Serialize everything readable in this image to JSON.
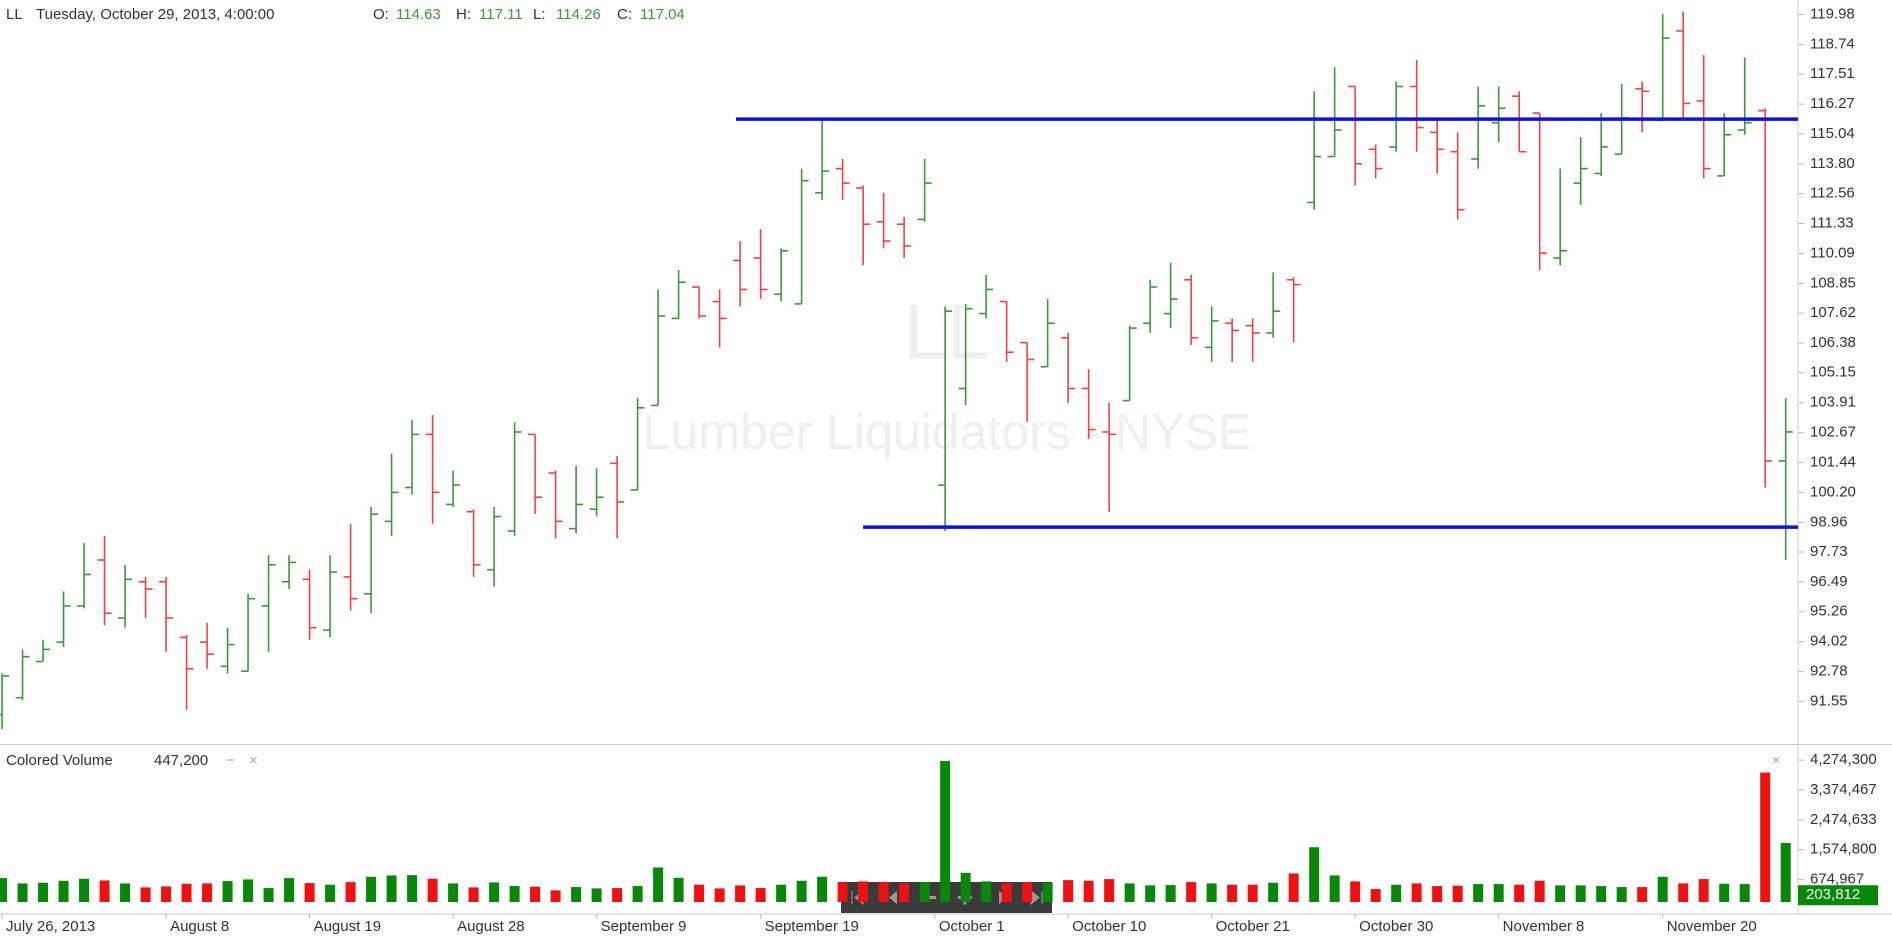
{
  "chart_data": [
    {
      "type": "ohlc",
      "symbol": "LL",
      "datetime": "Tuesday, October 29, 2013, 4:00:00",
      "readout": [
        {
          "label": "O:",
          "value": 114.63
        },
        {
          "label": "H:",
          "value": 117.11
        },
        {
          "label": "L:",
          "value": 114.26
        },
        {
          "label": "C:",
          "value": 117.04
        }
      ],
      "watermark": [
        "LL",
        "Lumber Liquidators - NYSE"
      ],
      "up_color": "#3a9a3a",
      "down_color": "#ee4343",
      "level_color": "#1010e0",
      "xlim": [
        -0.1,
        87.6
      ],
      "ylim": [
        89.95,
        120.58
      ],
      "yticks": [
        119.98,
        118.74,
        117.51,
        116.27,
        115.04,
        {
          "value": 113.8,
          "label": "113.80"
        },
        112.56,
        111.33,
        110.09,
        108.85,
        107.62,
        106.38,
        105.15,
        103.91,
        102.67,
        101.44,
        {
          "value": 100.2,
          "label": "100.20"
        },
        98.96,
        97.73,
        96.49,
        95.26,
        94.02,
        92.78,
        91.55
      ],
      "xticks": [
        {
          "value": 0,
          "label": "July 26, 2013"
        },
        {
          "value": 8,
          "label": "August 8"
        },
        {
          "value": 15,
          "label": "August 19"
        },
        {
          "value": 22,
          "label": "August 28"
        },
        {
          "value": 29,
          "label": "September 9"
        },
        {
          "value": 37,
          "label": "September 19"
        },
        {
          "value": 45.5,
          "label": "October 1"
        },
        {
          "value": 52,
          "label": "October 10"
        },
        {
          "value": 59,
          "label": "October 21"
        },
        {
          "value": 66,
          "label": "October 30"
        },
        {
          "value": 73,
          "label": "November 8"
        },
        {
          "value": 81,
          "label": "November 20"
        }
      ],
      "levels": [
        {
          "value": 115.65,
          "start": 35.8
        },
        {
          "value": 98.76,
          "start": 42
        }
      ],
      "open": [
        91.0,
        91.7,
        93.2,
        94.0,
        95.5,
        97.4,
        95.0,
        96.5,
        96.5,
        94.2,
        94.0,
        93.0,
        92.8,
        95.5,
        96.5,
        96.6,
        94.5,
        96.7,
        96.0,
        99.0,
        100.4,
        102.6,
        99.7,
        99.4,
        97.0,
        98.6,
        102.6,
        101.0,
        98.7,
        99.5,
        101.4,
        100.3,
        103.8,
        107.4,
        108.7,
        108.1,
        109.8,
        109.9,
        108.4,
        108.0,
        112.6,
        113.6,
        112.8,
        111.4,
        111.3,
        111.5,
        100.5,
        104.5,
        107.6,
        108.1,
        106.4,
        105.4,
        106.6,
        104.5,
        102.7,
        104.0,
        107.2,
        107.6,
        109.0,
        106.2,
        107.2,
        107.1,
        106.8,
        109.0,
        112.2,
        114.1,
        117.0,
        114.4,
        114.5,
        117.0,
        115.1,
        114.3,
        114.0,
        115.5,
        116.6,
        115.9,
        109.9,
        113.0,
        113.4,
        114.2,
        116.9,
        115.6,
        119.3,
        116.4,
        113.3,
        115.2,
        116.0,
        101.5
      ],
      "high": [
        92.7,
        93.7,
        94.1,
        96.1,
        98.1,
        98.4,
        97.2,
        96.7,
        96.7,
        94.3,
        94.8,
        94.6,
        96.0,
        97.6,
        97.6,
        97.0,
        97.6,
        98.9,
        99.6,
        101.8,
        103.2,
        103.4,
        101.1,
        99.5,
        99.6,
        103.1,
        102.6,
        101.1,
        101.3,
        101.2,
        101.7,
        104.1,
        108.6,
        109.4,
        108.7,
        108.6,
        110.6,
        111.1,
        110.3,
        113.6,
        115.7,
        114.0,
        112.9,
        112.6,
        111.6,
        114.0,
        107.9,
        108.0,
        109.2,
        108.1,
        106.4,
        108.2,
        106.8,
        105.3,
        103.9,
        107.1,
        109.0,
        109.7,
        109.2,
        107.9,
        107.4,
        107.4,
        109.3,
        109.1,
        116.8,
        117.8,
        117.0,
        114.6,
        117.2,
        118.1,
        115.6,
        115.1,
        117.0,
        117.0,
        116.8,
        115.9,
        113.6,
        114.9,
        115.9,
        117.1,
        117.2,
        120.0,
        120.1,
        118.3,
        115.9,
        118.2,
        116.1,
        104.1
      ],
      "low": [
        90.4,
        91.6,
        93.2,
        93.8,
        95.4,
        94.7,
        94.6,
        95.0,
        93.6,
        91.2,
        92.9,
        92.7,
        92.8,
        93.6,
        96.2,
        94.1,
        94.2,
        95.3,
        95.2,
        98.4,
        100.1,
        98.9,
        99.6,
        96.7,
        96.3,
        98.4,
        99.3,
        98.3,
        98.5,
        99.2,
        98.3,
        100.3,
        103.8,
        107.4,
        107.4,
        106.2,
        107.9,
        108.2,
        108.1,
        108.0,
        112.3,
        112.3,
        109.6,
        110.3,
        109.9,
        111.4,
        98.6,
        103.8,
        107.4,
        105.6,
        103.1,
        105.4,
        103.9,
        102.4,
        99.4,
        104.0,
        106.8,
        107.0,
        106.3,
        105.6,
        105.6,
        105.6,
        106.6,
        106.4,
        111.9,
        114.1,
        112.9,
        113.2,
        114.3,
        114.3,
        113.4,
        111.5,
        113.6,
        114.7,
        114.3,
        109.4,
        109.6,
        112.1,
        113.3,
        114.2,
        115.1,
        115.6,
        115.7,
        113.2,
        113.3,
        115.0,
        100.4,
        97.4
      ],
      "close": [
        92.6,
        93.4,
        93.7,
        95.5,
        96.8,
        95.2,
        96.6,
        96.2,
        95.0,
        92.9,
        93.5,
        93.9,
        95.8,
        97.2,
        97.3,
        94.6,
        96.9,
        95.8,
        99.3,
        100.2,
        102.6,
        100.2,
        100.5,
        97.2,
        99.2,
        102.7,
        100.0,
        99.0,
        99.7,
        100.0,
        99.8,
        103.7,
        107.5,
        108.9,
        107.5,
        107.4,
        108.6,
        108.6,
        110.2,
        113.1,
        113.5,
        113.0,
        111.3,
        110.6,
        110.4,
        113.0,
        107.7,
        107.8,
        108.6,
        106.0,
        105.7,
        107.2,
        104.5,
        102.8,
        102.6,
        107.0,
        108.7,
        108.2,
        106.6,
        107.3,
        106.9,
        106.8,
        107.7,
        108.8,
        114.1,
        115.2,
        113.8,
        113.6,
        117.0,
        115.3,
        114.4,
        111.9,
        116.2,
        116.1,
        114.3,
        110.1,
        110.2,
        113.6,
        114.5,
        115.7,
        116.8,
        119.0,
        116.3,
        113.6,
        115.0,
        115.5,
        101.5,
        102.7
      ]
    },
    {
      "type": "bar",
      "title": "Colored Volume",
      "readout": {
        "value": 447200,
        "label": "447,200"
      },
      "up_color": "#088808",
      "down_color": "#ee1111",
      "ylim": [
        0,
        4640000
      ],
      "yticks": [
        {
          "value": 4274300,
          "label": "4,274,300"
        },
        {
          "value": 3374467,
          "label": "3,374,467"
        },
        {
          "value": 2474633,
          "label": "2,474,633"
        },
        {
          "value": 1574800,
          "label": "1,574,800"
        },
        {
          "value": 674967,
          "label": "674,967"
        }
      ],
      "last_label": {
        "value": 203812,
        "label": "203,812"
      },
      "values": [
        720000,
        560000,
        580000,
        640000,
        700000,
        650000,
        560000,
        440000,
        470000,
        550000,
        560000,
        630000,
        680000,
        420000,
        720000,
        570000,
        520000,
        600000,
        760000,
        800000,
        810000,
        700000,
        560000,
        440000,
        590000,
        480000,
        460000,
        350000,
        450000,
        410000,
        420000,
        480000,
        1040000,
        730000,
        520000,
        410000,
        500000,
        420000,
        520000,
        640000,
        760000,
        600000,
        620000,
        600000,
        560000,
        600000,
        4250000,
        880000,
        620000,
        560000,
        600000,
        580000,
        660000,
        640000,
        690000,
        560000,
        500000,
        510000,
        600000,
        560000,
        520000,
        520000,
        580000,
        860000,
        1650000,
        800000,
        620000,
        390000,
        520000,
        560000,
        480000,
        490000,
        540000,
        540000,
        520000,
        640000,
        500000,
        500000,
        480000,
        450000,
        450000,
        760000,
        560000,
        690000,
        550000,
        540000,
        3900000,
        1780000
      ]
    }
  ]
}
